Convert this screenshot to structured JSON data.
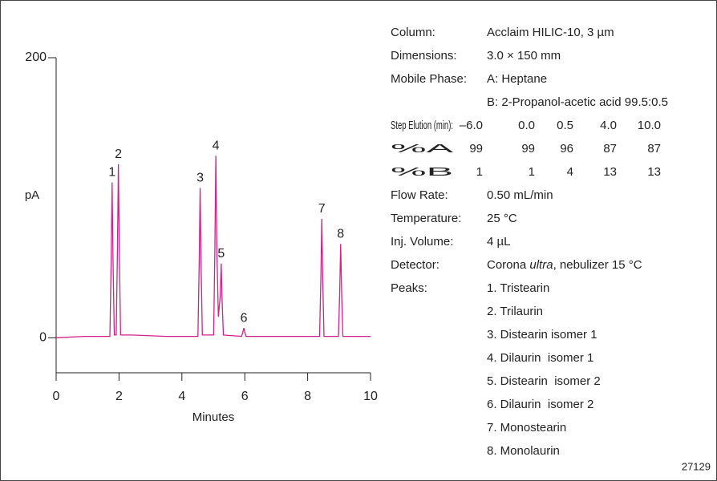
{
  "chart_data": {
    "type": "line",
    "x_label": "Minutes",
    "y_label": "pA",
    "color": "#d4208a",
    "x": [
      0,
      0.9,
      1.5,
      1.71,
      1.75,
      1.78,
      1.81,
      1.85,
      1.91,
      1.95,
      1.98,
      2.01,
      2.05,
      2.4,
      3.5,
      4.51,
      4.55,
      4.58,
      4.61,
      4.65,
      5.01,
      5.05,
      5.08,
      5.11,
      5.16,
      5.22,
      5.25,
      5.28,
      5.32,
      5.9,
      5.94,
      5.97,
      6.0,
      6.04,
      6.9,
      8.38,
      8.42,
      8.45,
      8.48,
      8.52,
      8.98,
      9.02,
      9.05,
      9.08,
      9.12,
      10
    ],
    "values": [
      0,
      1,
      1,
      1,
      55,
      111,
      55,
      2,
      2,
      62,
      124,
      62,
      2,
      2,
      1,
      1,
      53,
      107,
      53,
      2,
      2,
      65,
      130,
      65,
      15,
      30,
      53,
      26,
      2,
      1,
      4,
      7,
      4,
      1,
      1,
      1,
      42,
      85,
      42,
      1,
      1,
      33,
      67,
      33,
      1,
      1
    ],
    "xlim": [
      0,
      10
    ],
    "xticks": [
      0,
      2,
      4,
      6,
      8,
      10
    ],
    "ylim": [
      -25,
      200
    ],
    "yticks": [
      0,
      200
    ],
    "annotations": [
      {
        "label": "1",
        "x": 1.78,
        "y": 111
      },
      {
        "label": "2",
        "x": 1.98,
        "y": 124
      },
      {
        "label": "3",
        "x": 4.58,
        "y": 107
      },
      {
        "label": "4",
        "x": 5.08,
        "y": 130
      },
      {
        "label": "5",
        "x": 5.25,
        "y": 53
      },
      {
        "label": "6",
        "x": 5.97,
        "y": 7
      },
      {
        "label": "7",
        "x": 8.45,
        "y": 85
      },
      {
        "label": "8",
        "x": 9.05,
        "y": 67
      }
    ]
  },
  "conditions": [
    {
      "label": "Column:",
      "value": "Acclaim HILIC-10, 3 µm"
    },
    {
      "label": "Dimensions:",
      "value": "3.0 × 150 mm"
    },
    {
      "label": "Mobile Phase:",
      "value": "A: Heptane"
    },
    {
      "value": "B: 2-Propanol-acetic acid 99.5:0.5"
    },
    {
      "label": "Step Elution (min):",
      "values": [
        "–6.0",
        "0.0",
        "0.5",
        "4.0",
        "10.0"
      ]
    },
    {
      "label": "%A",
      "values": [
        "99",
        "99",
        "96",
        "87",
        "87"
      ]
    },
    {
      "label": "%B",
      "values": [
        "1",
        "1",
        "4",
        "13",
        "13"
      ]
    },
    {
      "label": "Flow Rate:",
      "value": "0.50 mL/min"
    },
    {
      "label": "Temperature:",
      "value": "25 °C"
    },
    {
      "label": "Inj. Volume:",
      "value": "4 µL"
    },
    {
      "label": "Detector:",
      "parts": [
        "Corona ",
        "ultra",
        ", nebulizer 15 °C"
      ]
    },
    {
      "label": "Peaks:",
      "items": [
        "1. Tristearin",
        "2. Trilaurin",
        "3. Distearin isomer 1",
        "4. Dilaurin  isomer 1",
        "5. Distearin  isomer 2",
        "6. Dilaurin  isomer 2",
        "7. Monostearin",
        "8. Monolaurin"
      ]
    }
  ],
  "figure_number": "27129"
}
